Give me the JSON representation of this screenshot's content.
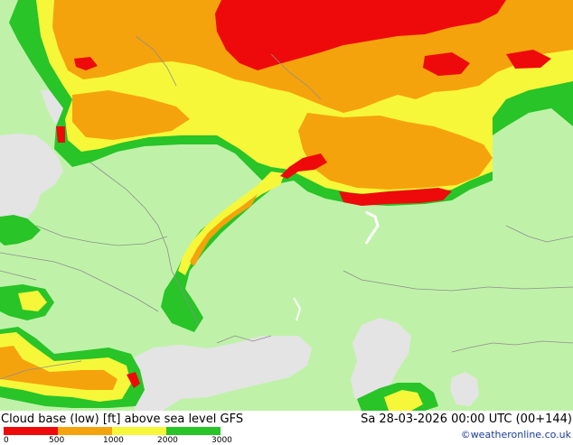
{
  "map": {
    "title": "Cloud base (low) [ft] above sea level GFS",
    "valid_time": "Sa 28-03-2026 00:00 UTC (00+144)",
    "credit": "©weatheronline.co.uk",
    "colors": {
      "land": "#bff2a8",
      "sea": "#e4e4e4",
      "green": "#28c428",
      "yellow": "#f7f73a",
      "orange": "#f5a30c",
      "red": "#ee0a0a"
    }
  },
  "legend": {
    "ticks": [
      "0",
      "500",
      "1000",
      "2000",
      "3000"
    ],
    "bins": [
      {
        "from": 0,
        "to": 500,
        "color": "#ee0a0a"
      },
      {
        "from": 500,
        "to": 1000,
        "color": "#f5a30c"
      },
      {
        "from": 1000,
        "to": 2000,
        "color": "#f7f73a"
      },
      {
        "from": 2000,
        "to": 3000,
        "color": "#28c428"
      }
    ]
  }
}
